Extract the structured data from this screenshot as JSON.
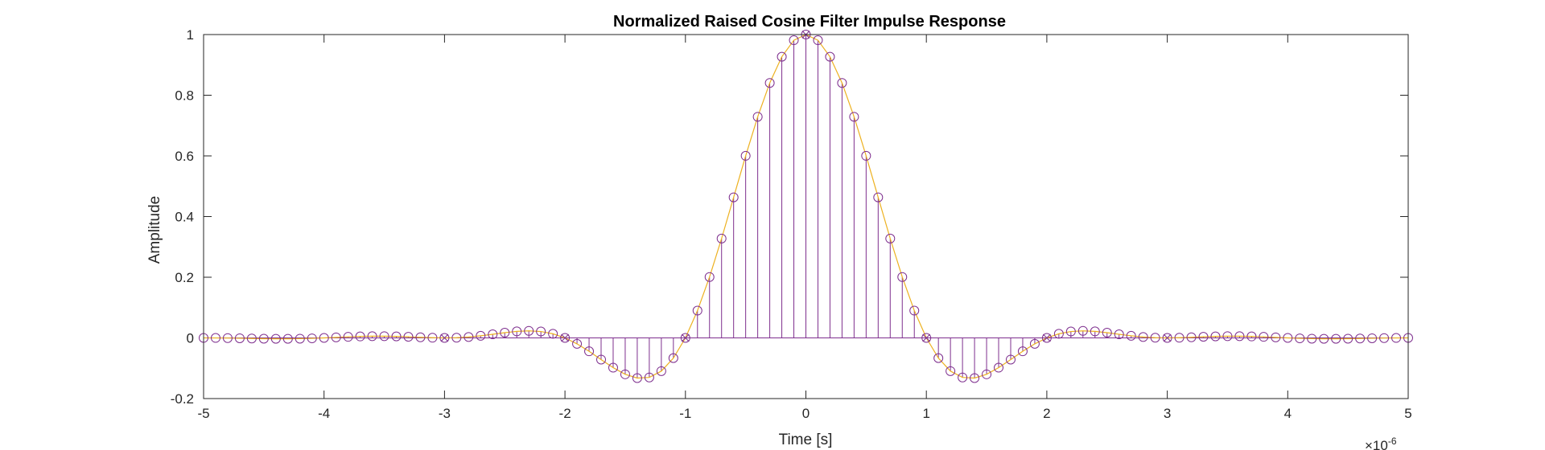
{
  "chart_data": {
    "type": "line",
    "title": "Normalized Raised Cosine Filter Impulse Response",
    "xlabel": "Time [s]",
    "ylabel": "Amplitude",
    "x_exponent_label": "×10",
    "x_exponent_power": "-6",
    "xlim": [
      -5,
      5
    ],
    "ylim": [
      -0.2,
      1
    ],
    "x_ticks": [
      "-5",
      "-4",
      "-3",
      "-2",
      "-1",
      "0",
      "1",
      "2",
      "3",
      "4",
      "5"
    ],
    "y_ticks": [
      "-0.2",
      "0",
      "0.2",
      "0.4",
      "0.6",
      "0.8",
      "1"
    ],
    "grid": false,
    "roll_off": 0.5,
    "symbol_period_us": 1,
    "colors": {
      "line": "#EDB120",
      "stem": "#7E2F8E",
      "axis": "#262626"
    },
    "series": [
      {
        "type": "line",
        "color": "#EDB120",
        "samples": 101
      },
      {
        "type": "stem",
        "marker": "o",
        "color": "#7E2F8E",
        "samples": 101
      },
      {
        "type": "marker",
        "marker": "x",
        "color": "#7E2F8E",
        "x": [
          -3,
          -2,
          -1,
          0,
          1,
          2,
          3
        ]
      }
    ]
  }
}
